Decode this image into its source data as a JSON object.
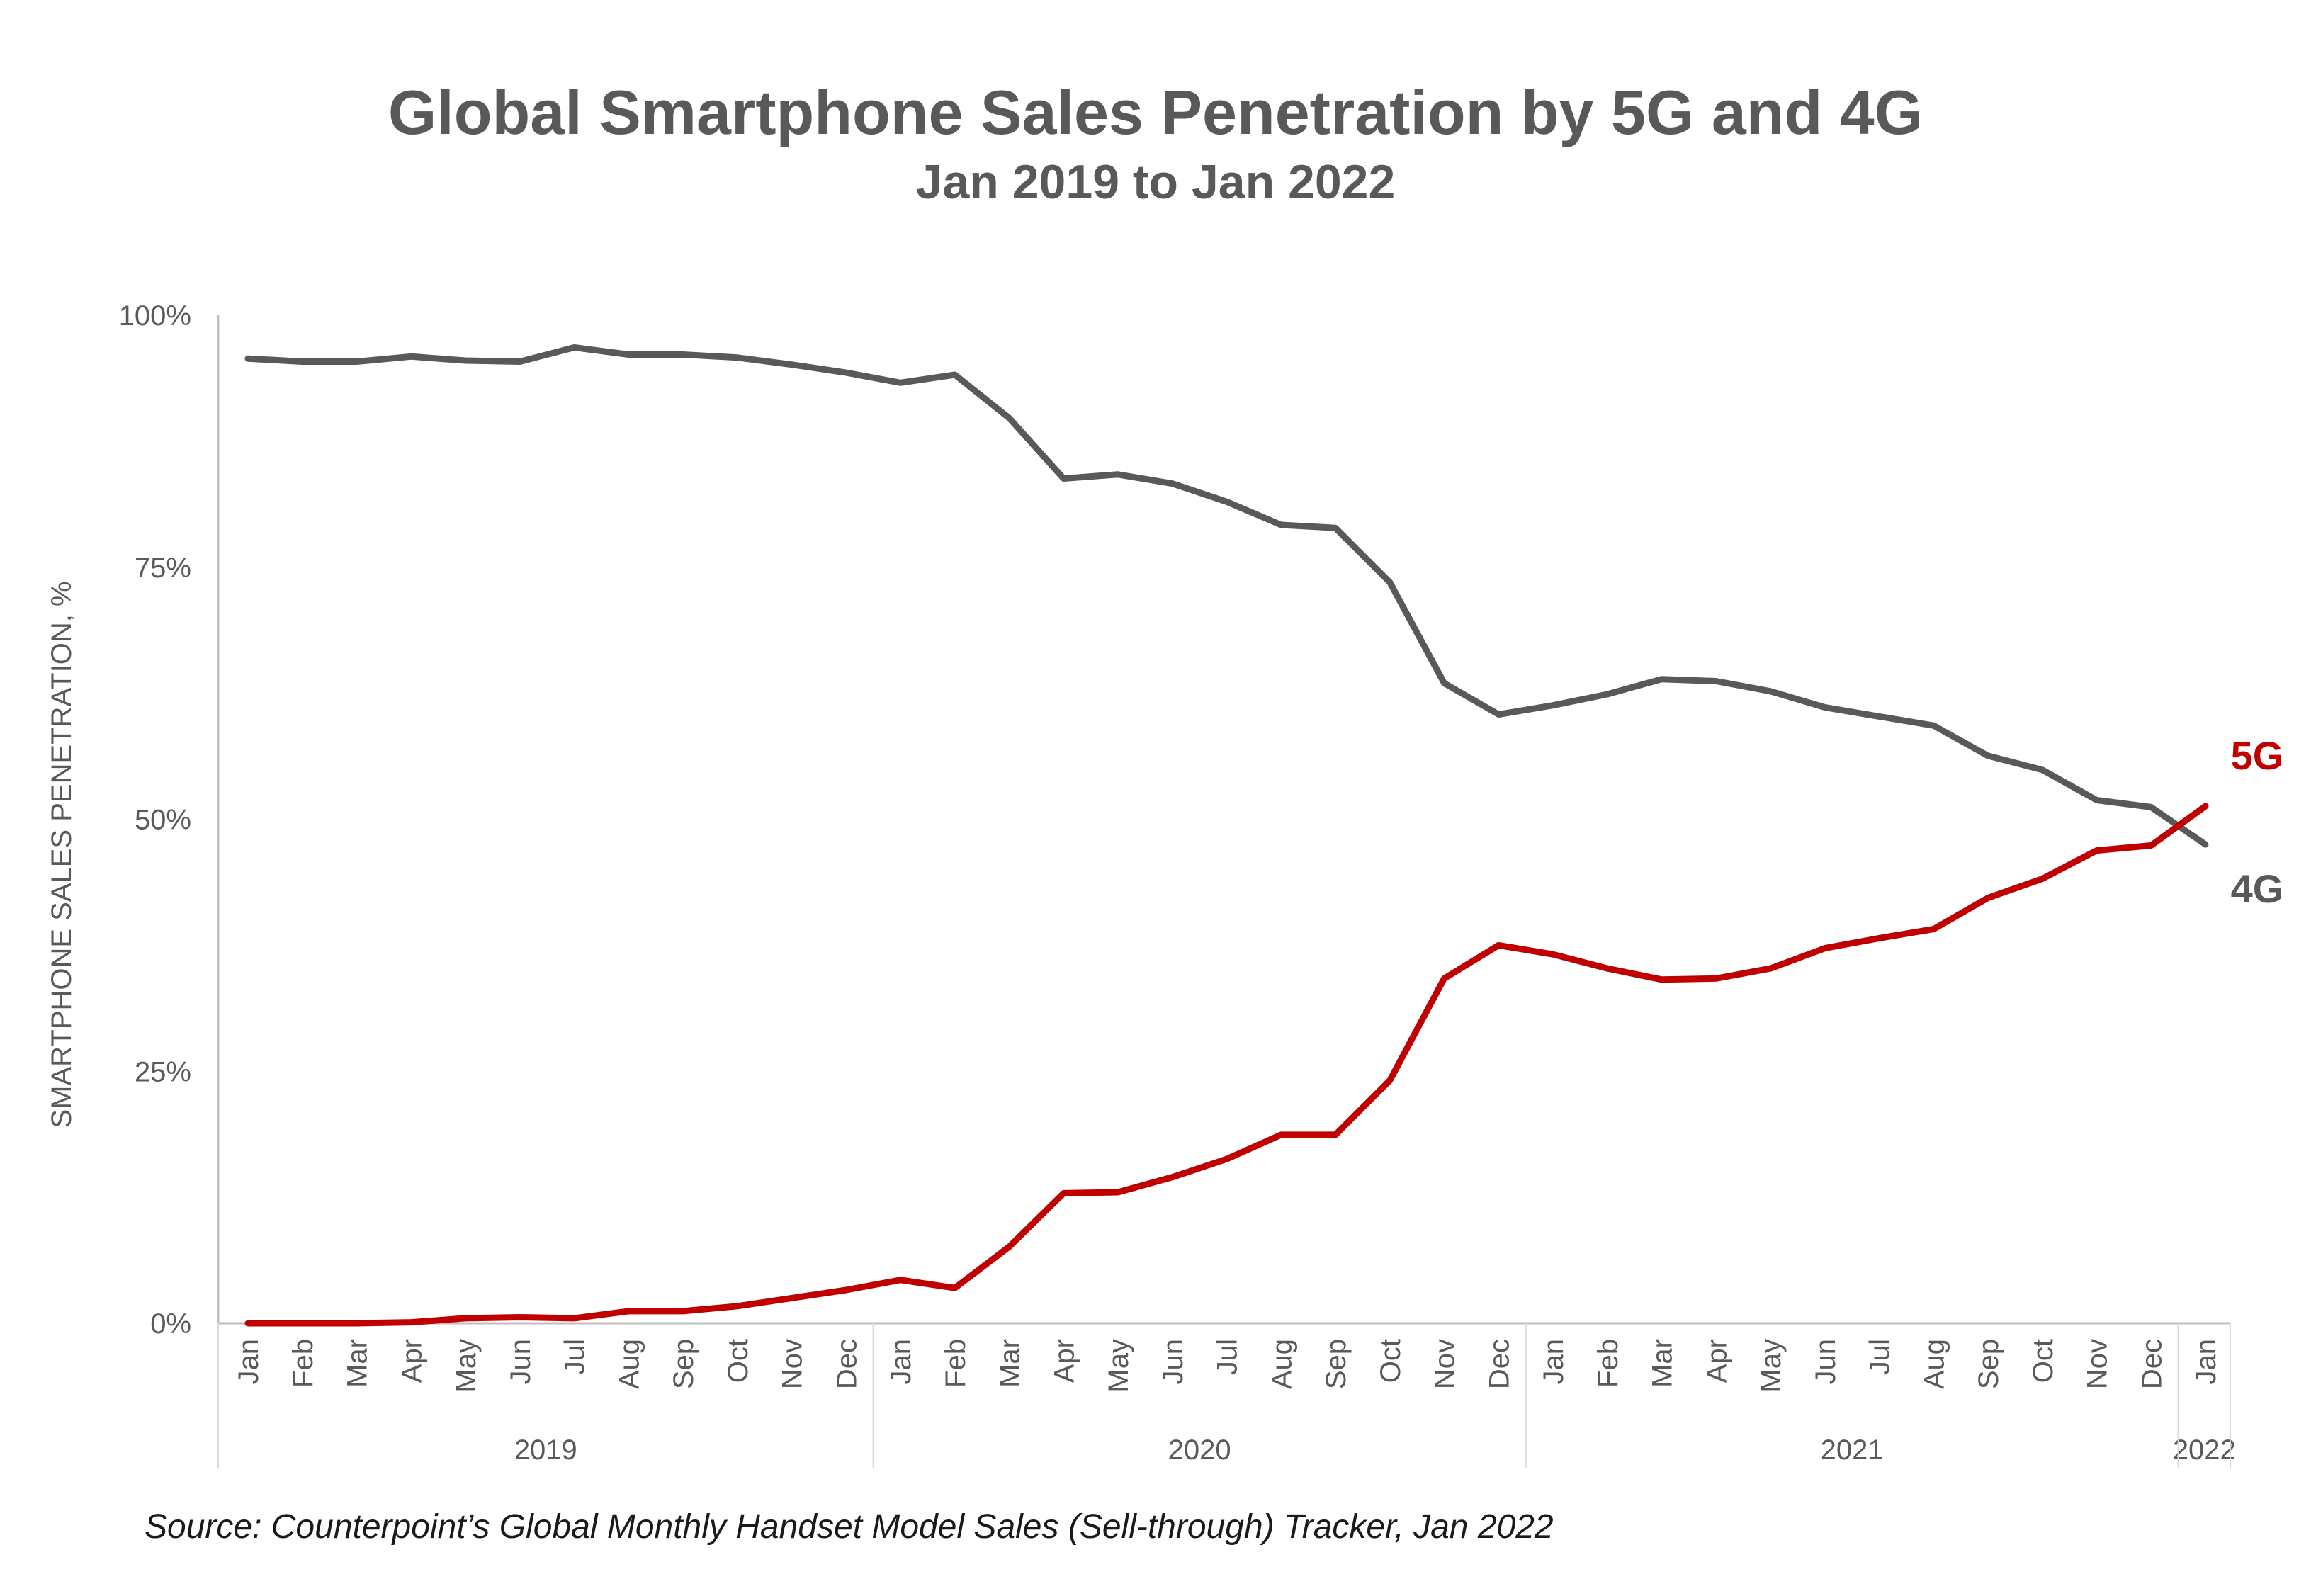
{
  "chart_data": {
    "type": "line",
    "title": "Global Smartphone Sales Penetration by 5G and 4G",
    "subtitle": "Jan 2019 to Jan 2022",
    "ylabel": "SMARTPHONE SALES PENETRATION, %",
    "xlabel": "",
    "ylim": [
      0,
      100
    ],
    "y_ticks": [
      "0%",
      "25%",
      "50%",
      "75%",
      "100%"
    ],
    "y_tick_values": [
      0,
      25,
      50,
      75,
      100
    ],
    "grid": false,
    "legend": "end-of-line labels",
    "x": [
      "Jan",
      "Feb",
      "Mar",
      "Apr",
      "May",
      "Jun",
      "Jul",
      "Aug",
      "Sep",
      "Oct",
      "Nov",
      "Dec",
      "Jan",
      "Feb",
      "Mar",
      "Apr",
      "May",
      "Jun",
      "Jul",
      "Aug",
      "Sep",
      "Oct",
      "Nov",
      "Dec",
      "Jan",
      "Feb",
      "Mar",
      "Apr",
      "May",
      "Jun",
      "Jul",
      "Aug",
      "Sep",
      "Oct",
      "Nov",
      "Dec",
      "Jan"
    ],
    "year_groups": [
      {
        "label": "2019",
        "start": 0,
        "count": 12
      },
      {
        "label": "2020",
        "start": 12,
        "count": 12
      },
      {
        "label": "2021",
        "start": 24,
        "count": 12
      },
      {
        "label": "2022",
        "start": 36,
        "count": 1
      }
    ],
    "series": [
      {
        "name": "4G",
        "color": "#595959",
        "values": [
          95.7,
          95.4,
          95.4,
          95.9,
          95.5,
          95.4,
          96.8,
          96.1,
          96.1,
          95.8,
          95.1,
          94.3,
          93.3,
          94.1,
          89.8,
          83.8,
          84.2,
          83.3,
          81.5,
          79.2,
          78.9,
          73.5,
          63.5,
          60.4,
          61.3,
          62.4,
          63.9,
          63.7,
          62.7,
          61.1,
          60.2,
          59.3,
          56.3,
          54.9,
          51.9,
          51.2,
          47.5
        ]
      },
      {
        "name": "5G",
        "color": "#c00000",
        "values": [
          0.0,
          0.0,
          0.0,
          0.1,
          0.5,
          0.6,
          0.5,
          1.2,
          1.2,
          1.7,
          2.5,
          3.3,
          4.3,
          3.5,
          7.6,
          12.9,
          13.0,
          14.5,
          16.3,
          18.7,
          18.7,
          24.1,
          34.2,
          37.5,
          36.6,
          35.2,
          34.1,
          34.2,
          35.2,
          37.2,
          38.2,
          39.1,
          42.2,
          44.1,
          46.9,
          47.4,
          51.3
        ]
      }
    ]
  },
  "source": "Source: Counterpoint’s Global Monthly Handset Model Sales (Sell-through) Tracker, Jan 2022"
}
